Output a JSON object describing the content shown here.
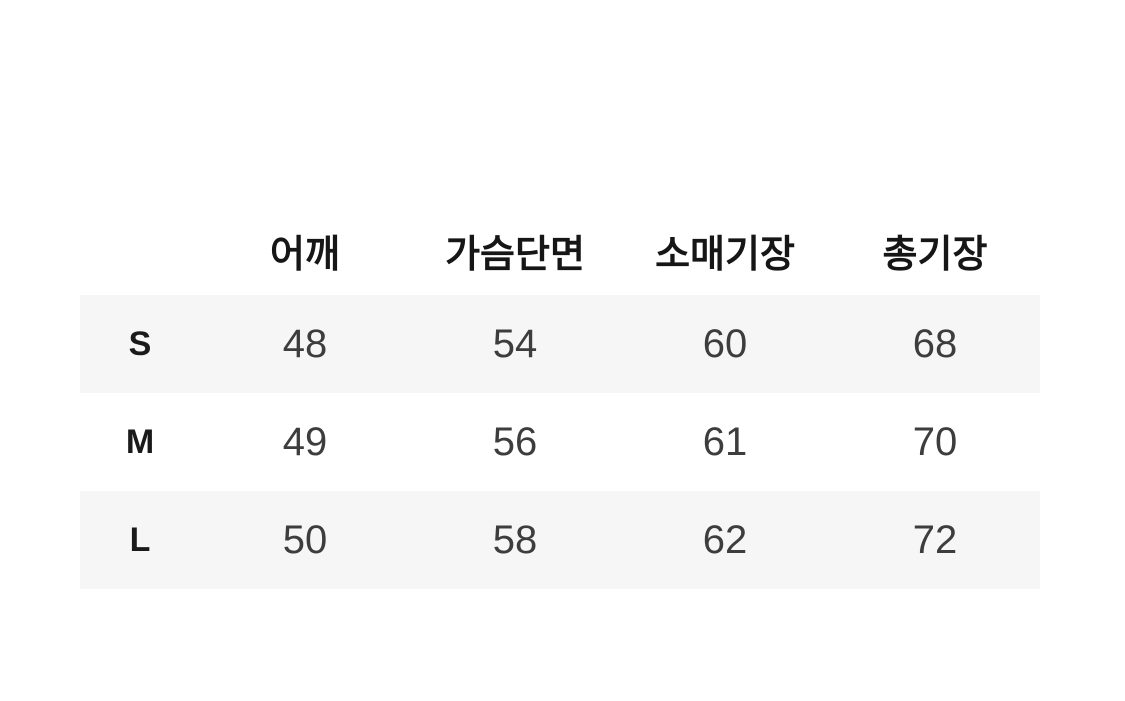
{
  "chart_data": {
    "type": "table",
    "columns": [
      "",
      "어깨",
      "가슴단면",
      "소매기장",
      "총기장"
    ],
    "rows": [
      {
        "size": "S",
        "values": [
          "48",
          "54",
          "60",
          "68"
        ]
      },
      {
        "size": "M",
        "values": [
          "49",
          "56",
          "61",
          "70"
        ]
      },
      {
        "size": "L",
        "values": [
          "50",
          "58",
          "62",
          "72"
        ]
      }
    ],
    "layout": {
      "alternating_rows_shaded": [
        0,
        2
      ],
      "grid": false,
      "header_position": "top"
    }
  },
  "colors": {
    "page_bg": "#ffffff",
    "alt_row_bg": "#f6f6f6",
    "header_text": "#161616",
    "size_label_text": "#1a1a1a",
    "value_text": "#3d3d3d"
  }
}
